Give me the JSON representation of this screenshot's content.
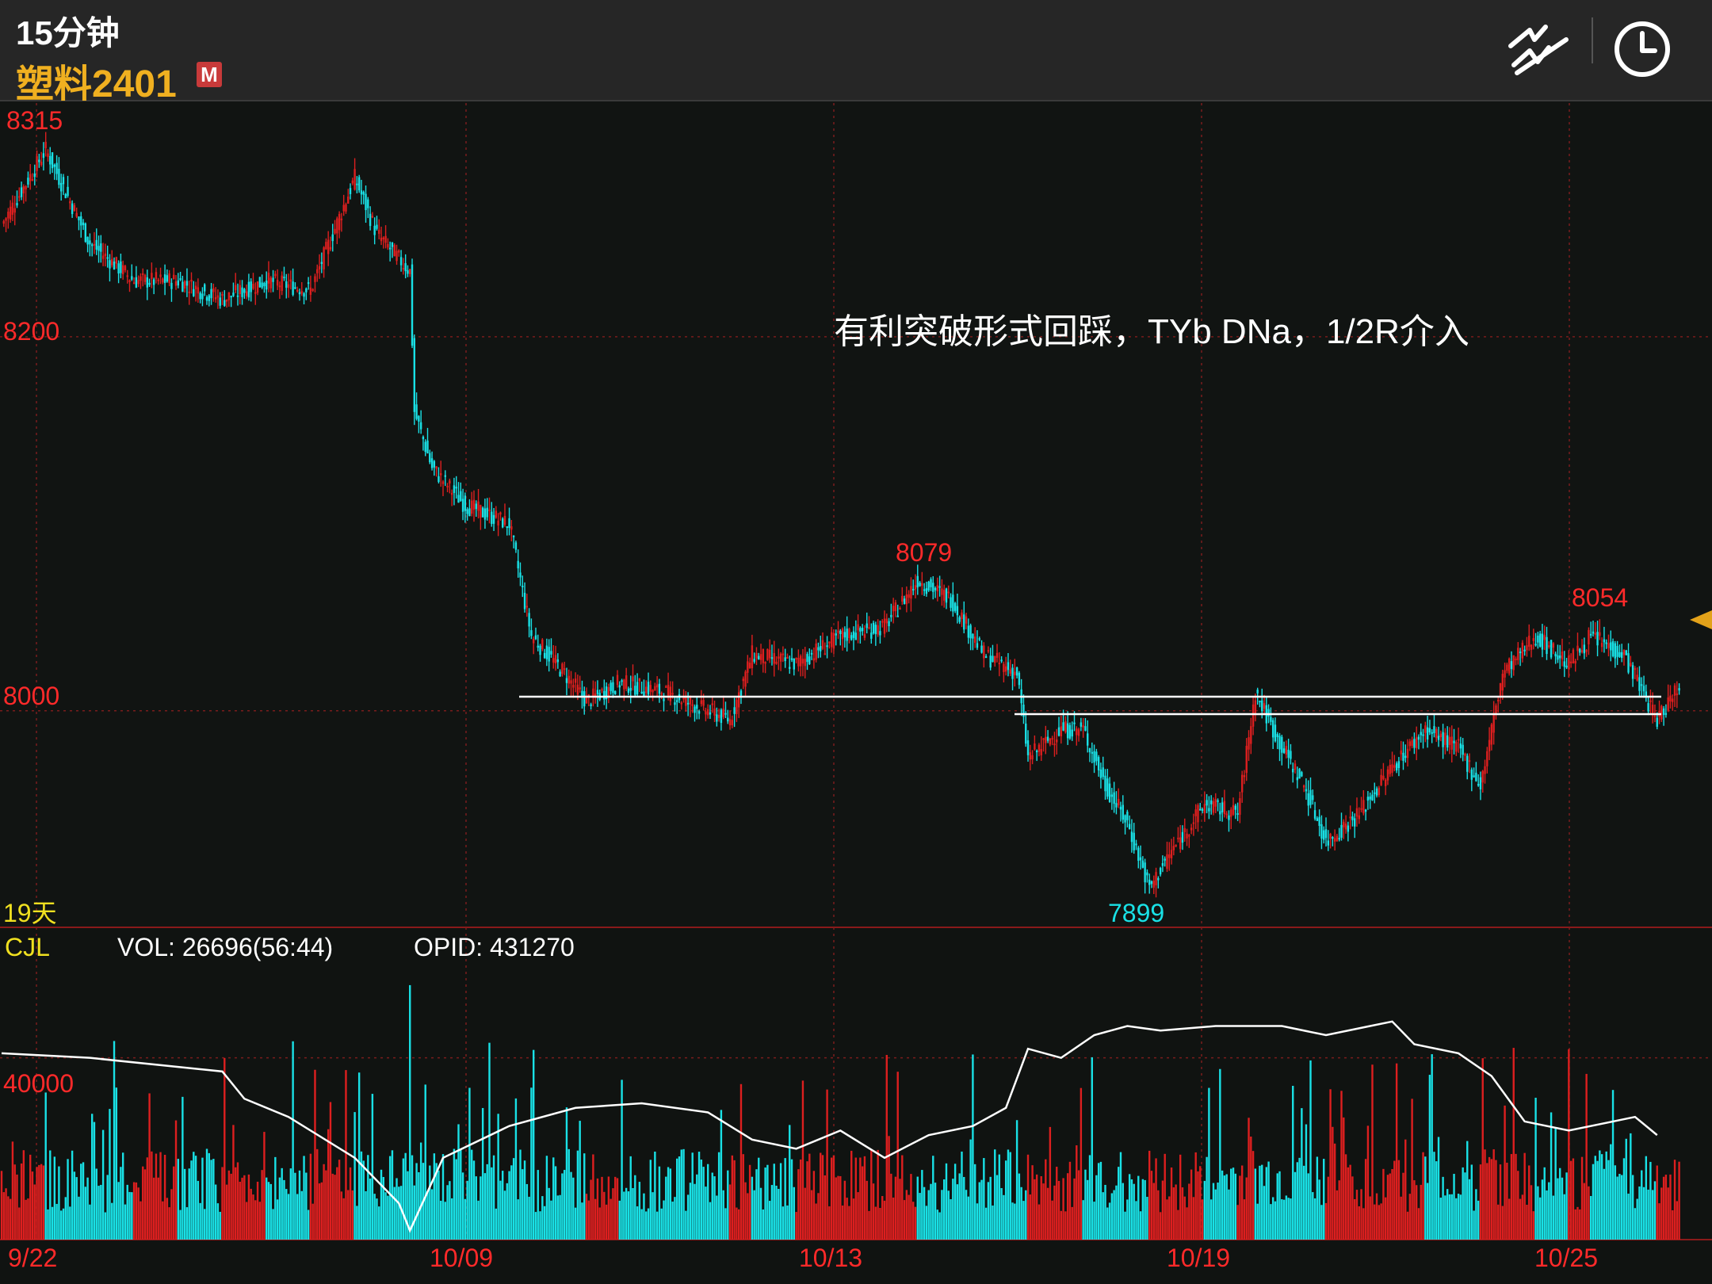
{
  "header": {
    "period": "15分钟",
    "symbol": "塑料2401",
    "badge": "M"
  },
  "toolbar": {
    "icons": [
      "drawing-tools-icon",
      "clock-icon"
    ]
  },
  "price_axis": {
    "labels": [
      "8315",
      "8200",
      "8000",
      "19天"
    ]
  },
  "annotations": {
    "note": "有利突破形式回踩，TYb DNa，1/2R介入",
    "high": "8315",
    "mid_high": "8079",
    "recent_high": "8054",
    "low": "7899"
  },
  "volume_panel": {
    "title": "CJL",
    "vol": "VOL: 26696(56:44)",
    "opid": "OPID: 431270",
    "level_label": "40000"
  },
  "x_axis": {
    "labels": [
      "9/22",
      "10/09",
      "10/13",
      "10/19",
      "10/25"
    ]
  },
  "colors": {
    "up": "#dd1f1f",
    "down": "#19e1e6",
    "text_red": "#ff2a2a",
    "oi_line": "#ffffff",
    "accent": "#e3a21a"
  },
  "chart_data": {
    "type": "candlestick",
    "title": "塑料2401 15分钟",
    "ylim": [
      7885,
      8325
    ],
    "key_levels": [
      8315,
      8200,
      8079,
      8054,
      8000,
      7899
    ],
    "horizontal_lines": [
      8000,
      7990
    ],
    "close_path": [
      [
        0,
        8260
      ],
      [
        20,
        8300
      ],
      [
        40,
        8250
      ],
      [
        60,
        8230
      ],
      [
        80,
        8230
      ],
      [
        100,
        8220
      ],
      [
        120,
        8230
      ],
      [
        140,
        8225
      ],
      [
        160,
        8285
      ],
      [
        170,
        8255
      ],
      [
        185,
        8235
      ],
      [
        187,
        8160
      ],
      [
        195,
        8130
      ],
      [
        210,
        8110
      ],
      [
        230,
        8100
      ],
      [
        240,
        8040
      ],
      [
        255,
        8020
      ],
      [
        265,
        8005
      ],
      [
        280,
        8015
      ],
      [
        300,
        8010
      ],
      [
        320,
        8000
      ],
      [
        330,
        7995
      ],
      [
        340,
        8030
      ],
      [
        360,
        8025
      ],
      [
        380,
        8040
      ],
      [
        400,
        8045
      ],
      [
        415,
        8070
      ],
      [
        430,
        8060
      ],
      [
        445,
        8030
      ],
      [
        460,
        8020
      ],
      [
        465,
        7975
      ],
      [
        480,
        7990
      ],
      [
        490,
        7990
      ],
      [
        500,
        7960
      ],
      [
        510,
        7940
      ],
      [
        520,
        7905
      ],
      [
        530,
        7925
      ],
      [
        545,
        7950
      ],
      [
        560,
        7945
      ],
      [
        568,
        8010
      ],
      [
        578,
        7985
      ],
      [
        590,
        7960
      ],
      [
        600,
        7930
      ],
      [
        615,
        7945
      ],
      [
        630,
        7970
      ],
      [
        645,
        7990
      ],
      [
        660,
        7980
      ],
      [
        670,
        7960
      ],
      [
        680,
        8020
      ],
      [
        695,
        8040
      ],
      [
        710,
        8025
      ],
      [
        720,
        8040
      ],
      [
        735,
        8030
      ],
      [
        750,
        7995
      ],
      [
        760,
        8015
      ]
    ],
    "volume_ylim": [
      0,
      60000
    ],
    "volume_level": 40000,
    "oi_path": [
      [
        0,
        41
      ],
      [
        40,
        40
      ],
      [
        80,
        38
      ],
      [
        100,
        37
      ],
      [
        110,
        31
      ],
      [
        130,
        27
      ],
      [
        160,
        18
      ],
      [
        180,
        8
      ],
      [
        185,
        2
      ],
      [
        200,
        18
      ],
      [
        230,
        25
      ],
      [
        260,
        29
      ],
      [
        290,
        30
      ],
      [
        320,
        28
      ],
      [
        340,
        22
      ],
      [
        360,
        20
      ],
      [
        380,
        24
      ],
      [
        400,
        18
      ],
      [
        420,
        23
      ],
      [
        440,
        25
      ],
      [
        455,
        29
      ],
      [
        465,
        42
      ],
      [
        480,
        40
      ],
      [
        495,
        45
      ],
      [
        510,
        47
      ],
      [
        525,
        46
      ],
      [
        550,
        47
      ],
      [
        580,
        47
      ],
      [
        600,
        45
      ],
      [
        620,
        47
      ],
      [
        630,
        48
      ],
      [
        640,
        43
      ],
      [
        660,
        41
      ],
      [
        675,
        36
      ],
      [
        690,
        26
      ],
      [
        710,
        24
      ],
      [
        730,
        26
      ],
      [
        740,
        27
      ],
      [
        750,
        23
      ]
    ]
  }
}
